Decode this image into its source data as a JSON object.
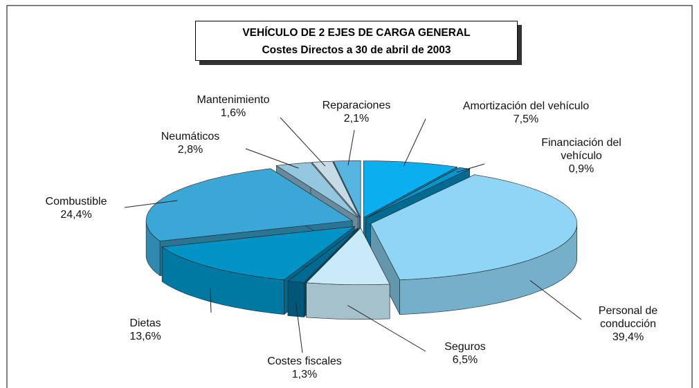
{
  "chart_data": {
    "type": "pie3d",
    "title": "VEHÍCULO DE 2 EJES DE CARGA GENERAL",
    "subtitle": "Costes Directos a 30 de abril de 2003",
    "categories": [
      "Amortización del vehículo",
      "Financiación del vehículo",
      "Personal de conducción",
      "Seguros",
      "Costes fiscales",
      "Dietas",
      "Combustible",
      "Neumáticos",
      "Mantenimiento",
      "Reparaciones"
    ],
    "values": [
      7.5,
      0.9,
      39.4,
      6.5,
      1.3,
      13.6,
      24.4,
      2.8,
      1.6,
      2.1
    ],
    "value_labels": [
      "7,5%",
      "0,9%",
      "39,4%",
      "6,5%",
      "1,3%",
      "13,6%",
      "24,4%",
      "2,8%",
      "1,6%",
      "2,1%"
    ],
    "colors": [
      "#0aaff0",
      "#0097cf",
      "#8fd6f6",
      "#c9ebf9",
      "#006a92",
      "#0093c6",
      "#3ba7d6",
      "#93c7df",
      "#c6dbe6",
      "#57b6e0"
    ]
  }
}
